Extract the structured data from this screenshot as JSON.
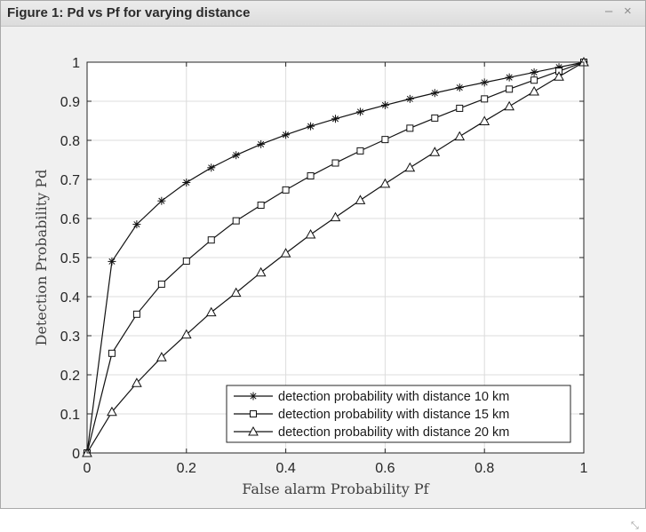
{
  "window": {
    "title": "Figure 1: Pd vs Pf for varying distance",
    "minimize_icon": "–",
    "close_icon": "×",
    "resize_icon": "⤡"
  },
  "chart_data": {
    "type": "line",
    "title": "",
    "xlabel": "False alarm Probability Pf",
    "ylabel": "Detection Probability Pd",
    "xlim": [
      0,
      1
    ],
    "ylim": [
      0,
      1
    ],
    "grid": true,
    "legend_position": "bottom-right",
    "xticks": [
      "0",
      "0.2",
      "0.4",
      "0.6",
      "0.8",
      "1"
    ],
    "yticks": [
      "0",
      "0.1",
      "0.2",
      "0.3",
      "0.4",
      "0.5",
      "0.6",
      "0.7",
      "0.8",
      "0.9",
      "1"
    ],
    "x": [
      0,
      0.05,
      0.1,
      0.15,
      0.2,
      0.25,
      0.3,
      0.35,
      0.4,
      0.45,
      0.5,
      0.55,
      0.6,
      0.65,
      0.7,
      0.75,
      0.8,
      0.85,
      0.9,
      0.95,
      1.0
    ],
    "series": [
      {
        "name": "detection probability with distance 10 km",
        "marker": "asterisk",
        "values": [
          0,
          0.49,
          0.585,
          0.645,
          0.692,
          0.73,
          0.762,
          0.79,
          0.814,
          0.836,
          0.855,
          0.873,
          0.89,
          0.906,
          0.921,
          0.935,
          0.948,
          0.961,
          0.974,
          0.987,
          1.0
        ]
      },
      {
        "name": "detection probability with distance 15 km",
        "marker": "square",
        "values": [
          0,
          0.255,
          0.355,
          0.432,
          0.491,
          0.545,
          0.594,
          0.634,
          0.673,
          0.709,
          0.742,
          0.773,
          0.802,
          0.831,
          0.857,
          0.882,
          0.906,
          0.931,
          0.954,
          0.977,
          1.0
        ]
      },
      {
        "name": "detection probability with distance 20 km",
        "marker": "triangle",
        "values": [
          0,
          0.105,
          0.179,
          0.245,
          0.303,
          0.36,
          0.41,
          0.462,
          0.511,
          0.559,
          0.603,
          0.647,
          0.689,
          0.73,
          0.77,
          0.81,
          0.849,
          0.887,
          0.925,
          0.963,
          1.0
        ]
      }
    ]
  }
}
